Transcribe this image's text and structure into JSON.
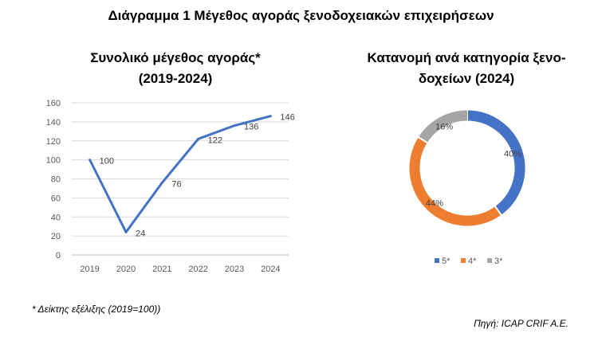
{
  "main_title": "Διάγραμμα 1 Μέγεθος αγοράς ξενοδοχειακών επιχειρήσεων",
  "footnote": "* Δείκτης εξέλιξης (2019=100))",
  "source": "Πηγή:  ICAP CRIF A.E.",
  "chart_data": [
    {
      "type": "line",
      "title_lines": [
        "Συνολικό μέγεθος αγοράς*",
        "(2019-2024)"
      ],
      "x": [
        "2019",
        "2020",
        "2021",
        "2022",
        "2023",
        "2024"
      ],
      "series": [
        {
          "values": [
            100,
            24,
            76,
            122,
            136,
            146
          ],
          "color": "#4472C4"
        }
      ],
      "data_labels": [
        "100",
        "24",
        "76",
        "122",
        "136",
        "146"
      ],
      "y_ticks": [
        "0",
        "20",
        "40",
        "60",
        "80",
        "100",
        "120",
        "140",
        "160"
      ],
      "ylim": [
        0,
        160
      ],
      "grid": true
    },
    {
      "type": "pie",
      "title_lines": [
        "Κατανομή ανά κατηγορία ξενο-",
        "δοχείων (2024)"
      ],
      "donut": true,
      "categories": [
        "5*",
        "4*",
        "3*"
      ],
      "values": [
        40,
        44,
        16
      ],
      "data_labels": [
        "40%",
        "44%",
        "16%"
      ],
      "colors": [
        "#4472C4",
        "#ED7D31",
        "#A5A5A5"
      ],
      "legend": "bottom"
    }
  ]
}
